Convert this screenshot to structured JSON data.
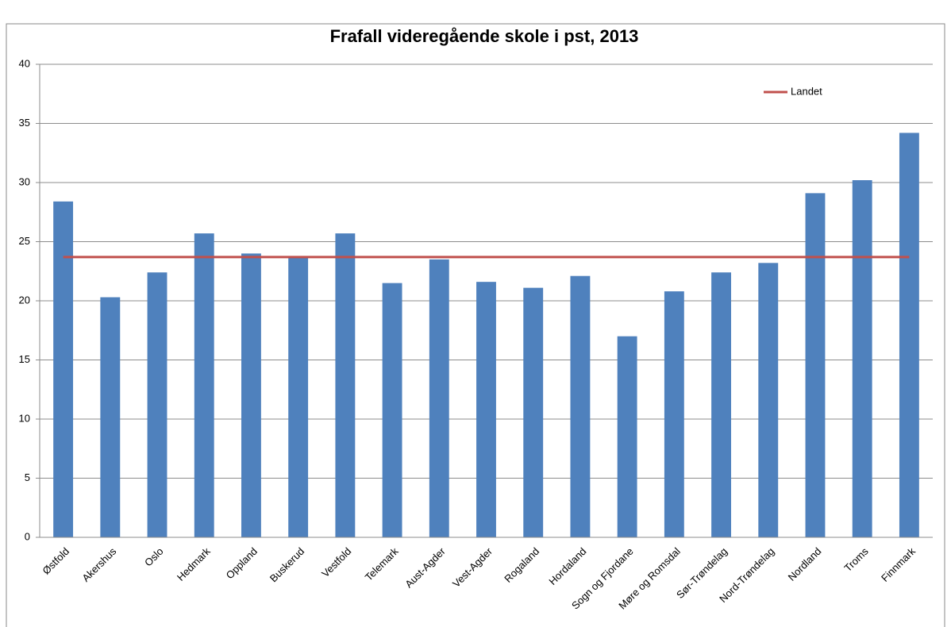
{
  "chart_data": {
    "type": "bar",
    "title": "Frafall videregående skole i pst, 2013",
    "categories": [
      "Østfold",
      "Akershus",
      "Oslo",
      "Hedmark",
      "Oppland",
      "Buskerud",
      "Vestfold",
      "Telemark",
      "Aust-Agder",
      "Vest-Agder",
      "Rogaland",
      "Hordaland",
      "Sogn og Fjordane",
      "Møre og Romsdal",
      "Sør-Trøndelag",
      "Nord-Trøndelag",
      "Nordland",
      "Troms",
      "Finnmark"
    ],
    "values": [
      28.4,
      20.3,
      22.4,
      25.7,
      24.0,
      23.7,
      25.7,
      21.5,
      23.5,
      21.6,
      21.1,
      22.1,
      17.0,
      20.8,
      22.4,
      23.2,
      29.1,
      30.2,
      34.2
    ],
    "color": "#4f81bd",
    "series": [
      {
        "name": "Landet",
        "type": "line",
        "color": "#c0504d",
        "values": [
          23.7,
          23.7,
          23.7,
          23.7,
          23.7,
          23.7,
          23.7,
          23.7,
          23.7,
          23.7,
          23.7,
          23.7,
          23.7,
          23.7,
          23.7,
          23.7,
          23.7,
          23.7,
          23.7
        ]
      }
    ],
    "ylim": [
      0,
      40
    ],
    "yticks": [
      0,
      5,
      10,
      15,
      20,
      25,
      30,
      35,
      40
    ],
    "grid": true,
    "legend": "top-right"
  }
}
